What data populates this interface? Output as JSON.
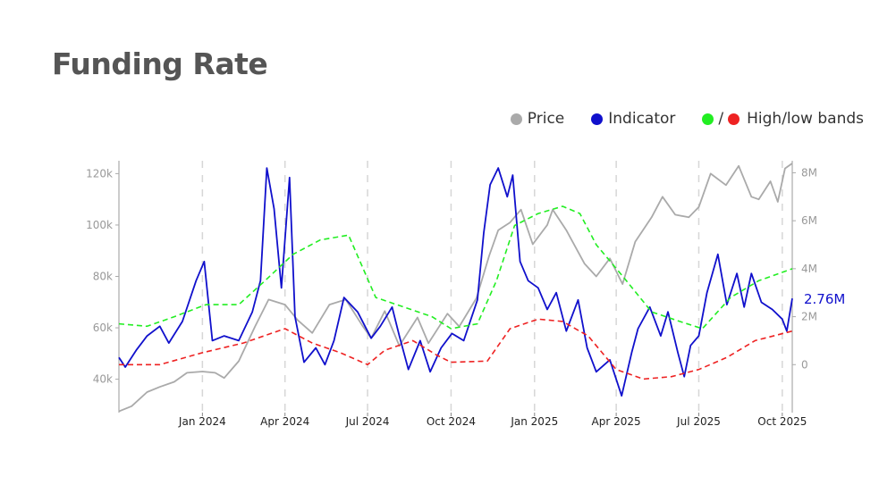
{
  "title": "Funding Rate",
  "legend": {
    "price": {
      "label": "Price",
      "color": "#aaaaaa"
    },
    "indicator": {
      "label": "Indicator",
      "color": "#1010cc"
    },
    "bands": {
      "label": "High/low bands",
      "slash": "/",
      "high_color": "#22ee22",
      "low_color": "#ee2222"
    }
  },
  "chart_data": {
    "type": "line",
    "x_axis": {
      "start": "2023-10-01",
      "end": "2025-10-12",
      "ticks": [
        {
          "date": "2024-01-01",
          "label": "Jan 2024"
        },
        {
          "date": "2024-04-01",
          "label": "Apr 2024"
        },
        {
          "date": "2024-07-01",
          "label": "Jul 2024"
        },
        {
          "date": "2024-10-01",
          "label": "Oct 2024"
        },
        {
          "date": "2025-01-01",
          "label": "Jan 2025"
        },
        {
          "date": "2025-04-01",
          "label": "Apr 2025"
        },
        {
          "date": "2025-07-01",
          "label": "Jul 2025"
        },
        {
          "date": "2025-10-01",
          "label": "Oct 2025"
        }
      ]
    },
    "y_left": {
      "range": [
        27000,
        125000
      ],
      "ticks": [
        {
          "v": 40000,
          "label": "40k"
        },
        {
          "v": 60000,
          "label": "60k"
        },
        {
          "v": 80000,
          "label": "80k"
        },
        {
          "v": 100000,
          "label": "100k"
        },
        {
          "v": 120000,
          "label": "120k"
        }
      ]
    },
    "y_right": {
      "range": [
        -2000000,
        8500000
      ],
      "ticks": [
        {
          "v": 0,
          "label": "0"
        },
        {
          "v": 2000000,
          "label": "2M"
        },
        {
          "v": 4000000,
          "label": "4M"
        },
        {
          "v": 6000000,
          "label": "6M"
        },
        {
          "v": 8000000,
          "label": "8M"
        }
      ]
    },
    "last_value_label": "2.76M",
    "series": [
      {
        "name": "Price",
        "axis": "left",
        "color": "#aaaaaa",
        "dash": false,
        "points": [
          [
            "2023-10-01",
            27500
          ],
          [
            "2023-10-15",
            29500
          ],
          [
            "2023-11-01",
            35000
          ],
          [
            "2023-11-15",
            37000
          ],
          [
            "2023-12-01",
            39000
          ],
          [
            "2023-12-15",
            42500
          ],
          [
            "2024-01-01",
            43000
          ],
          [
            "2024-01-15",
            42500
          ],
          [
            "2024-01-25",
            40500
          ],
          [
            "2024-02-10",
            47000
          ],
          [
            "2024-02-28",
            60500
          ],
          [
            "2024-03-14",
            71000
          ],
          [
            "2024-04-01",
            69000
          ],
          [
            "2024-04-15",
            63000
          ],
          [
            "2024-05-01",
            58000
          ],
          [
            "2024-05-20",
            69000
          ],
          [
            "2024-06-07",
            71000
          ],
          [
            "2024-06-25",
            61000
          ],
          [
            "2024-07-05",
            56000
          ],
          [
            "2024-07-20",
            66500
          ],
          [
            "2024-08-05",
            53000
          ],
          [
            "2024-08-25",
            64000
          ],
          [
            "2024-09-06",
            54000
          ],
          [
            "2024-09-27",
            65500
          ],
          [
            "2024-10-10",
            60500
          ],
          [
            "2024-10-29",
            71500
          ],
          [
            "2024-11-12",
            88000
          ],
          [
            "2024-11-22",
            98000
          ],
          [
            "2024-12-05",
            101000
          ],
          [
            "2024-12-17",
            106000
          ],
          [
            "2024-12-30",
            92500
          ],
          [
            "2025-01-15",
            100000
          ],
          [
            "2025-01-21",
            106000
          ],
          [
            "2025-02-05",
            98000
          ],
          [
            "2025-02-25",
            85000
          ],
          [
            "2025-03-10",
            80000
          ],
          [
            "2025-03-25",
            87000
          ],
          [
            "2025-04-08",
            77000
          ],
          [
            "2025-04-22",
            93500
          ],
          [
            "2025-05-10",
            103000
          ],
          [
            "2025-05-22",
            111000
          ],
          [
            "2025-06-05",
            104000
          ],
          [
            "2025-06-20",
            103000
          ],
          [
            "2025-07-01",
            107000
          ],
          [
            "2025-07-14",
            120000
          ],
          [
            "2025-07-31",
            115500
          ],
          [
            "2025-08-14",
            123000
          ],
          [
            "2025-08-28",
            111000
          ],
          [
            "2025-09-05",
            110000
          ],
          [
            "2025-09-18",
            117000
          ],
          [
            "2025-09-26",
            109000
          ],
          [
            "2025-10-04",
            122000
          ],
          [
            "2025-10-12",
            124000
          ]
        ]
      },
      {
        "name": "Indicator",
        "axis": "right",
        "color": "#1010cc",
        "dash": false,
        "points": [
          [
            "2023-10-01",
            300000
          ],
          [
            "2023-10-08",
            -100000
          ],
          [
            "2023-10-20",
            600000
          ],
          [
            "2023-11-01",
            1200000
          ],
          [
            "2023-11-15",
            1600000
          ],
          [
            "2023-11-25",
            900000
          ],
          [
            "2023-12-10",
            1800000
          ],
          [
            "2023-12-25",
            3500000
          ],
          [
            "2024-01-03",
            4300000
          ],
          [
            "2024-01-12",
            1000000
          ],
          [
            "2024-01-25",
            1200000
          ],
          [
            "2024-02-10",
            1000000
          ],
          [
            "2024-02-25",
            2200000
          ],
          [
            "2024-03-05",
            3500000
          ],
          [
            "2024-03-12",
            8200000
          ],
          [
            "2024-03-20",
            6500000
          ],
          [
            "2024-03-28",
            3200000
          ],
          [
            "2024-04-06",
            7800000
          ],
          [
            "2024-04-12",
            2000000
          ],
          [
            "2024-04-22",
            100000
          ],
          [
            "2024-05-05",
            700000
          ],
          [
            "2024-05-15",
            0
          ],
          [
            "2024-05-25",
            1000000
          ],
          [
            "2024-06-05",
            2800000
          ],
          [
            "2024-06-20",
            2200000
          ],
          [
            "2024-07-05",
            1100000
          ],
          [
            "2024-07-15",
            1600000
          ],
          [
            "2024-07-28",
            2400000
          ],
          [
            "2024-08-05",
            1200000
          ],
          [
            "2024-08-15",
            -200000
          ],
          [
            "2024-08-28",
            1000000
          ],
          [
            "2024-09-08",
            -300000
          ],
          [
            "2024-09-20",
            700000
          ],
          [
            "2024-10-02",
            1300000
          ],
          [
            "2024-10-15",
            1000000
          ],
          [
            "2024-10-30",
            2700000
          ],
          [
            "2024-11-06",
            5500000
          ],
          [
            "2024-11-13",
            7500000
          ],
          [
            "2024-11-22",
            8200000
          ],
          [
            "2024-12-02",
            7000000
          ],
          [
            "2024-12-08",
            7900000
          ],
          [
            "2024-12-16",
            4300000
          ],
          [
            "2024-12-25",
            3500000
          ],
          [
            "2025-01-05",
            3200000
          ],
          [
            "2025-01-15",
            2300000
          ],
          [
            "2025-01-25",
            3000000
          ],
          [
            "2025-02-05",
            1400000
          ],
          [
            "2025-02-18",
            2700000
          ],
          [
            "2025-02-28",
            700000
          ],
          [
            "2025-03-10",
            -300000
          ],
          [
            "2025-03-25",
            200000
          ],
          [
            "2025-04-07",
            -1300000
          ],
          [
            "2025-04-18",
            500000
          ],
          [
            "2025-04-25",
            1500000
          ],
          [
            "2025-05-08",
            2400000
          ],
          [
            "2025-05-20",
            1200000
          ],
          [
            "2025-05-28",
            2200000
          ],
          [
            "2025-06-08",
            500000
          ],
          [
            "2025-06-15",
            -500000
          ],
          [
            "2025-06-22",
            800000
          ],
          [
            "2025-07-01",
            1200000
          ],
          [
            "2025-07-10",
            3000000
          ],
          [
            "2025-07-22",
            4600000
          ],
          [
            "2025-08-01",
            2500000
          ],
          [
            "2025-08-12",
            3800000
          ],
          [
            "2025-08-20",
            2400000
          ],
          [
            "2025-08-28",
            3800000
          ],
          [
            "2025-09-08",
            2600000
          ],
          [
            "2025-09-20",
            2300000
          ],
          [
            "2025-10-01",
            1900000
          ],
          [
            "2025-10-06",
            1400000
          ],
          [
            "2025-10-12",
            2760000
          ]
        ]
      },
      {
        "name": "High band",
        "axis": "right",
        "color": "#22ee22",
        "dash": true,
        "points": [
          [
            "2023-10-01",
            1700000
          ],
          [
            "2023-11-01",
            1600000
          ],
          [
            "2023-12-01",
            2000000
          ],
          [
            "2024-01-05",
            2500000
          ],
          [
            "2024-02-10",
            2500000
          ],
          [
            "2024-03-10",
            3500000
          ],
          [
            "2024-04-10",
            4600000
          ],
          [
            "2024-05-10",
            5200000
          ],
          [
            "2024-06-10",
            5400000
          ],
          [
            "2024-07-10",
            2800000
          ],
          [
            "2024-08-10",
            2400000
          ],
          [
            "2024-09-10",
            2000000
          ],
          [
            "2024-10-01",
            1500000
          ],
          [
            "2024-10-30",
            1700000
          ],
          [
            "2024-11-20",
            3500000
          ],
          [
            "2024-12-10",
            5800000
          ],
          [
            "2025-01-05",
            6300000
          ],
          [
            "2025-02-01",
            6600000
          ],
          [
            "2025-02-20",
            6300000
          ],
          [
            "2025-03-10",
            5000000
          ],
          [
            "2025-04-10",
            3600000
          ],
          [
            "2025-05-10",
            2200000
          ],
          [
            "2025-06-10",
            1800000
          ],
          [
            "2025-07-05",
            1500000
          ],
          [
            "2025-08-05",
            2800000
          ],
          [
            "2025-09-05",
            3500000
          ],
          [
            "2025-10-12",
            4000000
          ]
        ]
      },
      {
        "name": "Low band",
        "axis": "right",
        "color": "#ee2222",
        "dash": true,
        "points": [
          [
            "2023-10-01",
            0
          ],
          [
            "2023-11-15",
            0
          ],
          [
            "2024-01-01",
            500000
          ],
          [
            "2024-02-15",
            900000
          ],
          [
            "2024-04-01",
            1500000
          ],
          [
            "2024-05-01",
            900000
          ],
          [
            "2024-06-01",
            500000
          ],
          [
            "2024-07-01",
            0
          ],
          [
            "2024-07-20",
            600000
          ],
          [
            "2024-08-20",
            1000000
          ],
          [
            "2024-09-15",
            400000
          ],
          [
            "2024-10-01",
            100000
          ],
          [
            "2024-11-10",
            150000
          ],
          [
            "2024-12-05",
            1500000
          ],
          [
            "2025-01-05",
            1900000
          ],
          [
            "2025-02-01",
            1800000
          ],
          [
            "2025-03-01",
            1200000
          ],
          [
            "2025-04-01",
            -200000
          ],
          [
            "2025-05-01",
            -600000
          ],
          [
            "2025-06-01",
            -500000
          ],
          [
            "2025-07-01",
            -200000
          ],
          [
            "2025-08-01",
            300000
          ],
          [
            "2025-09-01",
            1000000
          ],
          [
            "2025-10-12",
            1400000
          ]
        ]
      }
    ]
  }
}
